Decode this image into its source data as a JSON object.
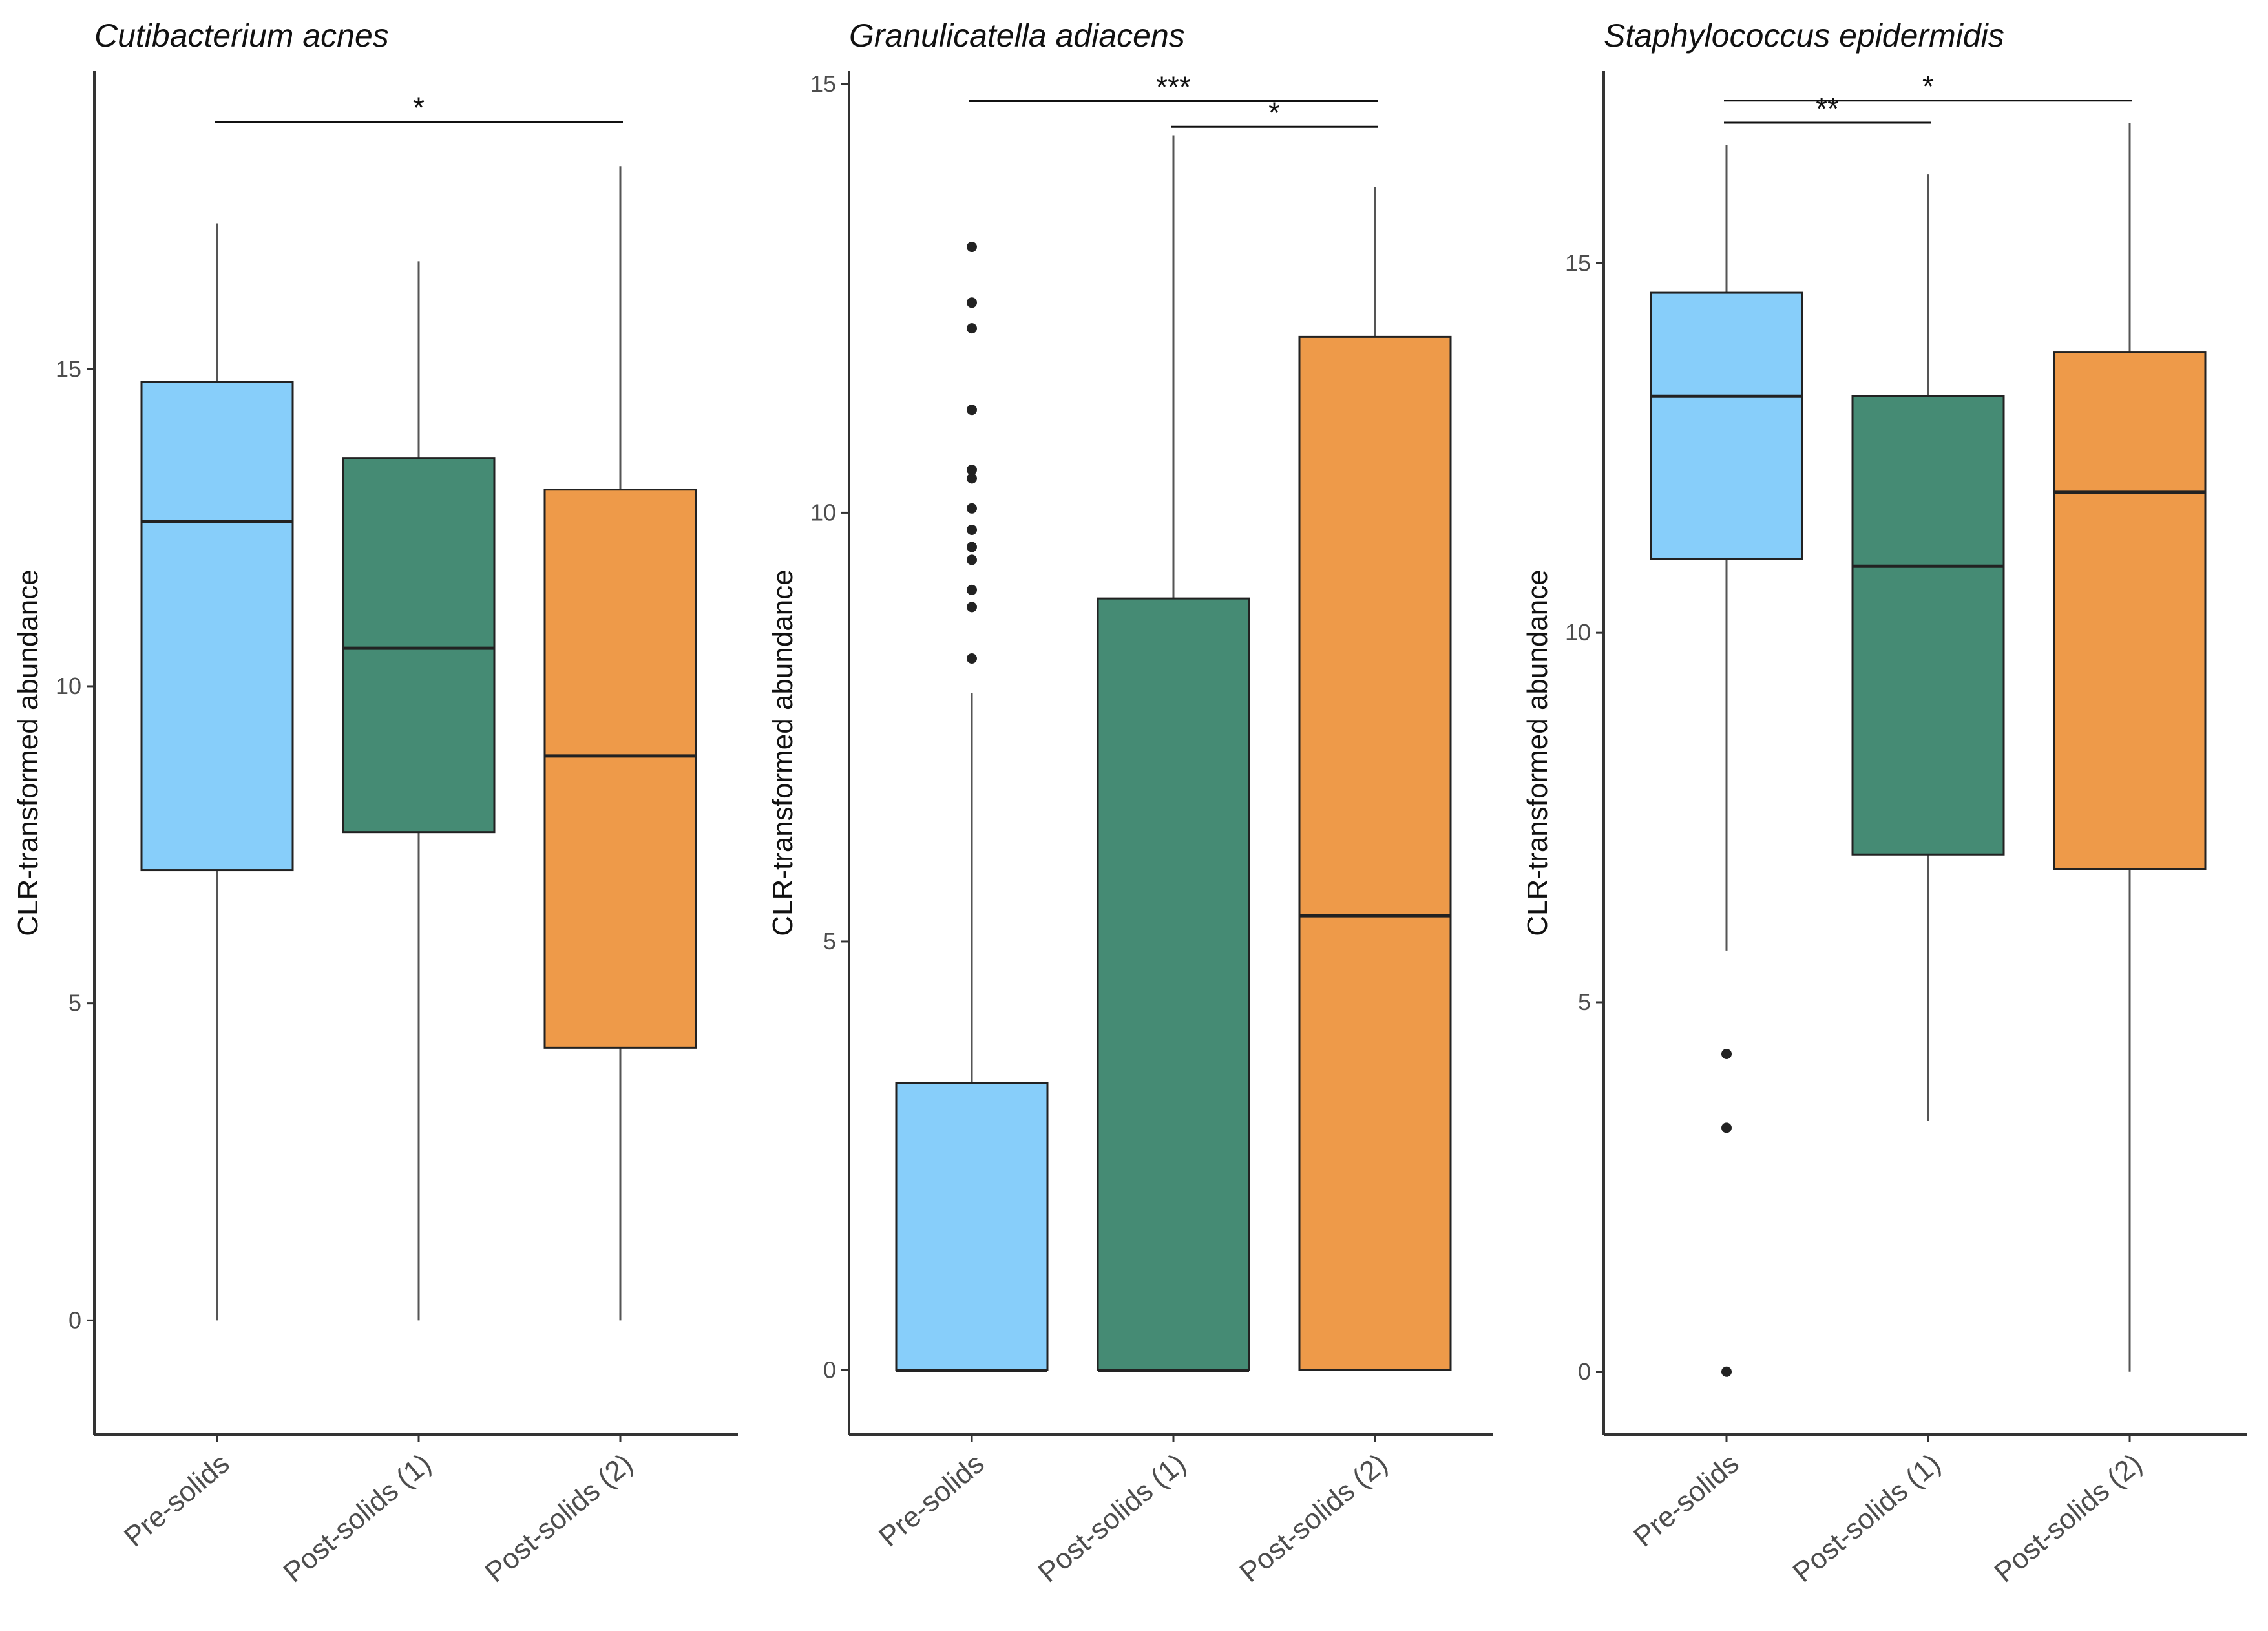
{
  "chart_data": [
    {
      "type": "box",
      "title": "Cutibacterium acnes",
      "ylabel": "CLR-transformed abundance",
      "ylim": [
        -1.8,
        19.7
      ],
      "yticks": [
        0,
        5,
        10,
        15
      ],
      "categories": [
        "Pre-solids",
        "Post-solids (1)",
        "Post-solids (2)"
      ],
      "colors": [
        "#87CEFA",
        "#458B74",
        "#EE9A49"
      ],
      "boxes": [
        {
          "category": "Pre-solids",
          "whisker_low": 0,
          "q1": 7.1,
          "median": 12.6,
          "q3": 14.8,
          "whisker_high": 17.3,
          "outliers": []
        },
        {
          "category": "Post-solids (1)",
          "whisker_low": 0,
          "q1": 7.7,
          "median": 10.6,
          "q3": 13.6,
          "whisker_high": 16.7,
          "outliers": []
        },
        {
          "category": "Post-solids (2)",
          "whisker_low": 0,
          "q1": 4.3,
          "median": 8.9,
          "q3": 13.1,
          "whisker_high": 18.2,
          "outliers": []
        }
      ],
      "significance": [
        {
          "from": "Pre-solids",
          "to": "Post-solids (2)",
          "y": 18.9,
          "label": "*"
        }
      ]
    },
    {
      "type": "box",
      "title": "Granulicatella adiacens",
      "ylabel": "CLR-transformed abundance",
      "ylim": [
        -0.75,
        15.15
      ],
      "yticks": [
        0,
        5,
        10,
        15
      ],
      "categories": [
        "Pre-solids",
        "Post-solids (1)",
        "Post-solids (2)"
      ],
      "colors": [
        "#87CEFA",
        "#458B74",
        "#EE9A49"
      ],
      "boxes": [
        {
          "category": "Pre-solids",
          "whisker_low": 0,
          "q1": 0,
          "median": 0,
          "q3": 3.35,
          "whisker_high": 7.9,
          "outliers": [
            8.3,
            8.9,
            9.1,
            9.45,
            9.6,
            9.8,
            10.05,
            10.4,
            10.5,
            11.2,
            12.15,
            12.45,
            13.1
          ]
        },
        {
          "category": "Post-solids (1)",
          "whisker_low": 0,
          "q1": 0,
          "median": 0,
          "q3": 9.0,
          "whisker_high": 14.4,
          "outliers": []
        },
        {
          "category": "Post-solids (2)",
          "whisker_low": 0,
          "q1": 0,
          "median": 5.3,
          "q3": 12.05,
          "whisker_high": 13.8,
          "outliers": []
        }
      ],
      "significance": [
        {
          "from": "Pre-solids",
          "to": "Post-solids (2)",
          "y": 14.8,
          "label": "***"
        },
        {
          "from": "Post-solids (1)",
          "to": "Post-solids (2)",
          "y": 14.5,
          "label": "*"
        }
      ]
    },
    {
      "type": "box",
      "title": "Staphylococcus epidermidis",
      "ylabel": "CLR-transformed abundance",
      "ylim": [
        -0.85,
        17.6
      ],
      "yticks": [
        0,
        5,
        10,
        15
      ],
      "categories": [
        "Pre-solids",
        "Post-solids (1)",
        "Post-solids (2)"
      ],
      "colors": [
        "#87CEFA",
        "#458B74",
        "#EE9A49"
      ],
      "boxes": [
        {
          "category": "Pre-solids",
          "whisker_low": 5.7,
          "q1": 11.0,
          "median": 13.2,
          "q3": 14.6,
          "whisker_high": 16.6,
          "outliers": [
            4.3,
            3.3,
            0
          ]
        },
        {
          "category": "Post-solids (1)",
          "whisker_low": 3.4,
          "q1": 7.0,
          "median": 10.9,
          "q3": 13.2,
          "whisker_high": 16.2,
          "outliers": []
        },
        {
          "category": "Post-solids (2)",
          "whisker_low": 0,
          "q1": 6.8,
          "median": 11.9,
          "q3": 13.8,
          "whisker_high": 16.9,
          "outliers": []
        }
      ],
      "significance": [
        {
          "from": "Pre-solids",
          "to": "Post-solids (2)",
          "y": 17.2,
          "label": "*"
        },
        {
          "from": "Pre-solids",
          "to": "Post-solids (1)",
          "y": 16.9,
          "label": "**"
        }
      ]
    }
  ]
}
